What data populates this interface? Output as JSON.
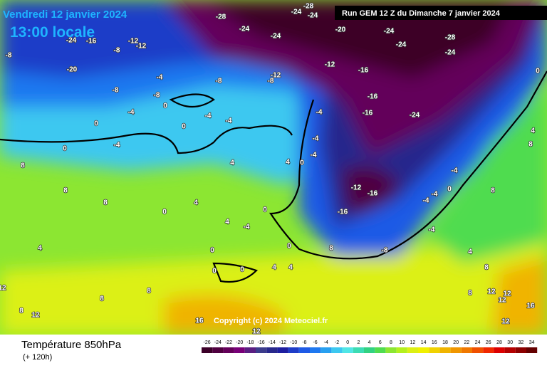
{
  "header": {
    "date": "Vendredi 12 janvier 2024",
    "time": "13:00 locale",
    "run": "Run GEM 12 Z du Dimanche 7 janvier 2024"
  },
  "footer": {
    "title": "Température 850hPa",
    "subtitle": "(+ 120h)",
    "copyright": "Copyright (c) 2024 Meteociel.fr"
  },
  "legend": {
    "ticks": [
      -26,
      -24,
      -22,
      -20,
      -18,
      -16,
      -14,
      -12,
      -10,
      -8,
      -6,
      -4,
      -2,
      0,
      2,
      4,
      6,
      8,
      10,
      12,
      14,
      16,
      18,
      20,
      22,
      24,
      26,
      28,
      30,
      32,
      34
    ],
    "colors": [
      "#3c0028",
      "#500040",
      "#64005a",
      "#780078",
      "#5a1e82",
      "#3c3c8c",
      "#28288c",
      "#1e1ea0",
      "#1e3cc8",
      "#1e5ae6",
      "#1e78f0",
      "#28a0f0",
      "#3cc8f0",
      "#50e6e6",
      "#3cdcb4",
      "#32d282",
      "#50dc50",
      "#8ce632",
      "#b4f01e",
      "#dcf014",
      "#f0f000",
      "#f0d200",
      "#f0b400",
      "#f09600",
      "#f07800",
      "#f05000",
      "#f02800",
      "#dc0000",
      "#b40000",
      "#8c0000",
      "#640000"
    ]
  },
  "map": {
    "labels": [
      -28,
      -24,
      -28,
      -24,
      -24,
      -24,
      -20,
      -24,
      -24,
      -28,
      -24,
      -24,
      -16,
      -12,
      -12,
      -8,
      -20,
      -8,
      -12,
      -16,
      -16,
      -16,
      -24,
      -12,
      -8,
      -8,
      -4,
      -8,
      -8,
      -4,
      0,
      -4,
      0,
      0,
      0,
      -4,
      -4,
      -4,
      -4,
      -4,
      4,
      4,
      0,
      -12,
      -16,
      -16,
      -4,
      -4,
      0,
      -4,
      -4,
      -8,
      8,
      0,
      0,
      0,
      0,
      4,
      4,
      4,
      8,
      8,
      8,
      0,
      4,
      -4,
      0,
      4,
      0,
      4,
      8,
      8,
      4,
      8,
      16,
      12,
      12,
      16,
      12,
      8,
      8,
      8,
      12,
      12,
      8,
      12,
      12
    ]
  }
}
